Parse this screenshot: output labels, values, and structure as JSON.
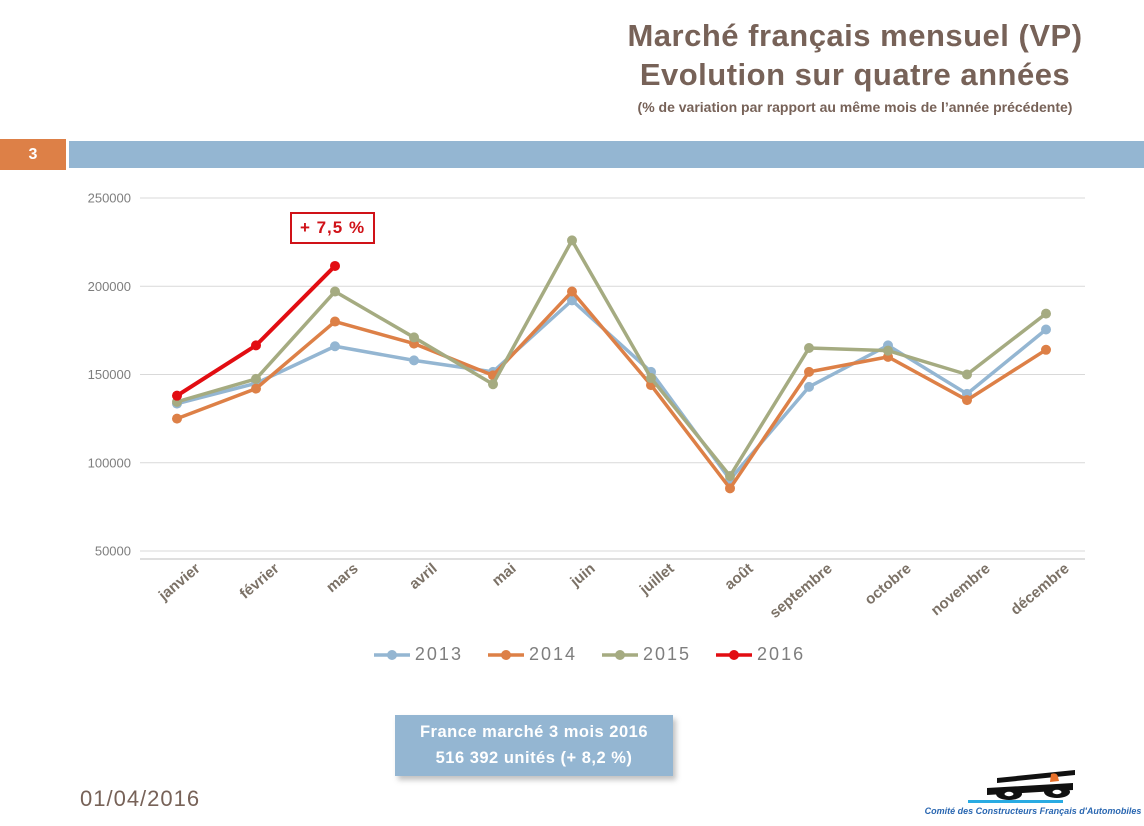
{
  "slide": {
    "page_number": "3",
    "date": "01/04/2016"
  },
  "header": {
    "title_line1": "Marché français mensuel (VP)",
    "title_line2": "Evolution sur quatre années",
    "subtitle": "(% de variation par rapport au même mois de l’année précédente)"
  },
  "annotation": {
    "label": "+ 7,5 %"
  },
  "info_box": {
    "line1": "France marché 3 mois 2016",
    "line2": "516 392 unités (+ 8,2 %)"
  },
  "footer_logo": {
    "caption": "Comité des Constructeurs Français d'Automobiles"
  },
  "colors": {
    "accent_orange": "#DD8047",
    "accent_blue": "#94B6D2",
    "accent_olive": "#A5AB81",
    "series_red": "#E20D12",
    "annotation_red": "#D01218",
    "title_brown": "#776258",
    "axis_label_gray": "#7E7E7E",
    "month_label_brown": "#7B7166",
    "gridline_gray": "#D9D9D9",
    "axis_line_gray": "#BFBFBF",
    "logo_text_blue": "#2A67B1",
    "logo_line_cyan": "#29ABE2"
  },
  "chart_data": {
    "type": "line",
    "title": "Marché français mensuel (VP) — Evolution sur quatre années",
    "xlabel": "",
    "ylabel": "",
    "categories": [
      "janvier",
      "février",
      "mars",
      "avril",
      "mai",
      "juin",
      "juillet",
      "août",
      "septembre",
      "octobre",
      "novembre",
      "décembre"
    ],
    "y_ticks": [
      250000,
      200000,
      150000,
      100000,
      50000
    ],
    "ylim": [
      50000,
      250000
    ],
    "grid": true,
    "legend_position": "bottom",
    "series": [
      {
        "name": "2013",
        "color": "#94B6D2",
        "values": [
          133500,
          145000,
          166000,
          158000,
          151500,
          192000,
          151500,
          90500,
          143000,
          166500,
          139000,
          175500
        ]
      },
      {
        "name": "2014",
        "color": "#DD8047",
        "values": [
          125000,
          142000,
          180000,
          167500,
          149500,
          197000,
          144000,
          85500,
          151500,
          160000,
          135500,
          164000
        ]
      },
      {
        "name": "2015",
        "color": "#A5AB81",
        "values": [
          134500,
          147500,
          197000,
          171000,
          144500,
          226000,
          148000,
          92500,
          165000,
          163500,
          150000,
          184500
        ]
      },
      {
        "name": "2016",
        "color": "#E20D12",
        "values": [
          138000,
          166500,
          211500,
          null,
          null,
          null,
          null,
          null,
          null,
          null,
          null,
          null
        ]
      }
    ],
    "annotations": [
      {
        "text": "+ 7,5 %",
        "series": "2016",
        "category": "mars",
        "value": 211500
      }
    ]
  }
}
